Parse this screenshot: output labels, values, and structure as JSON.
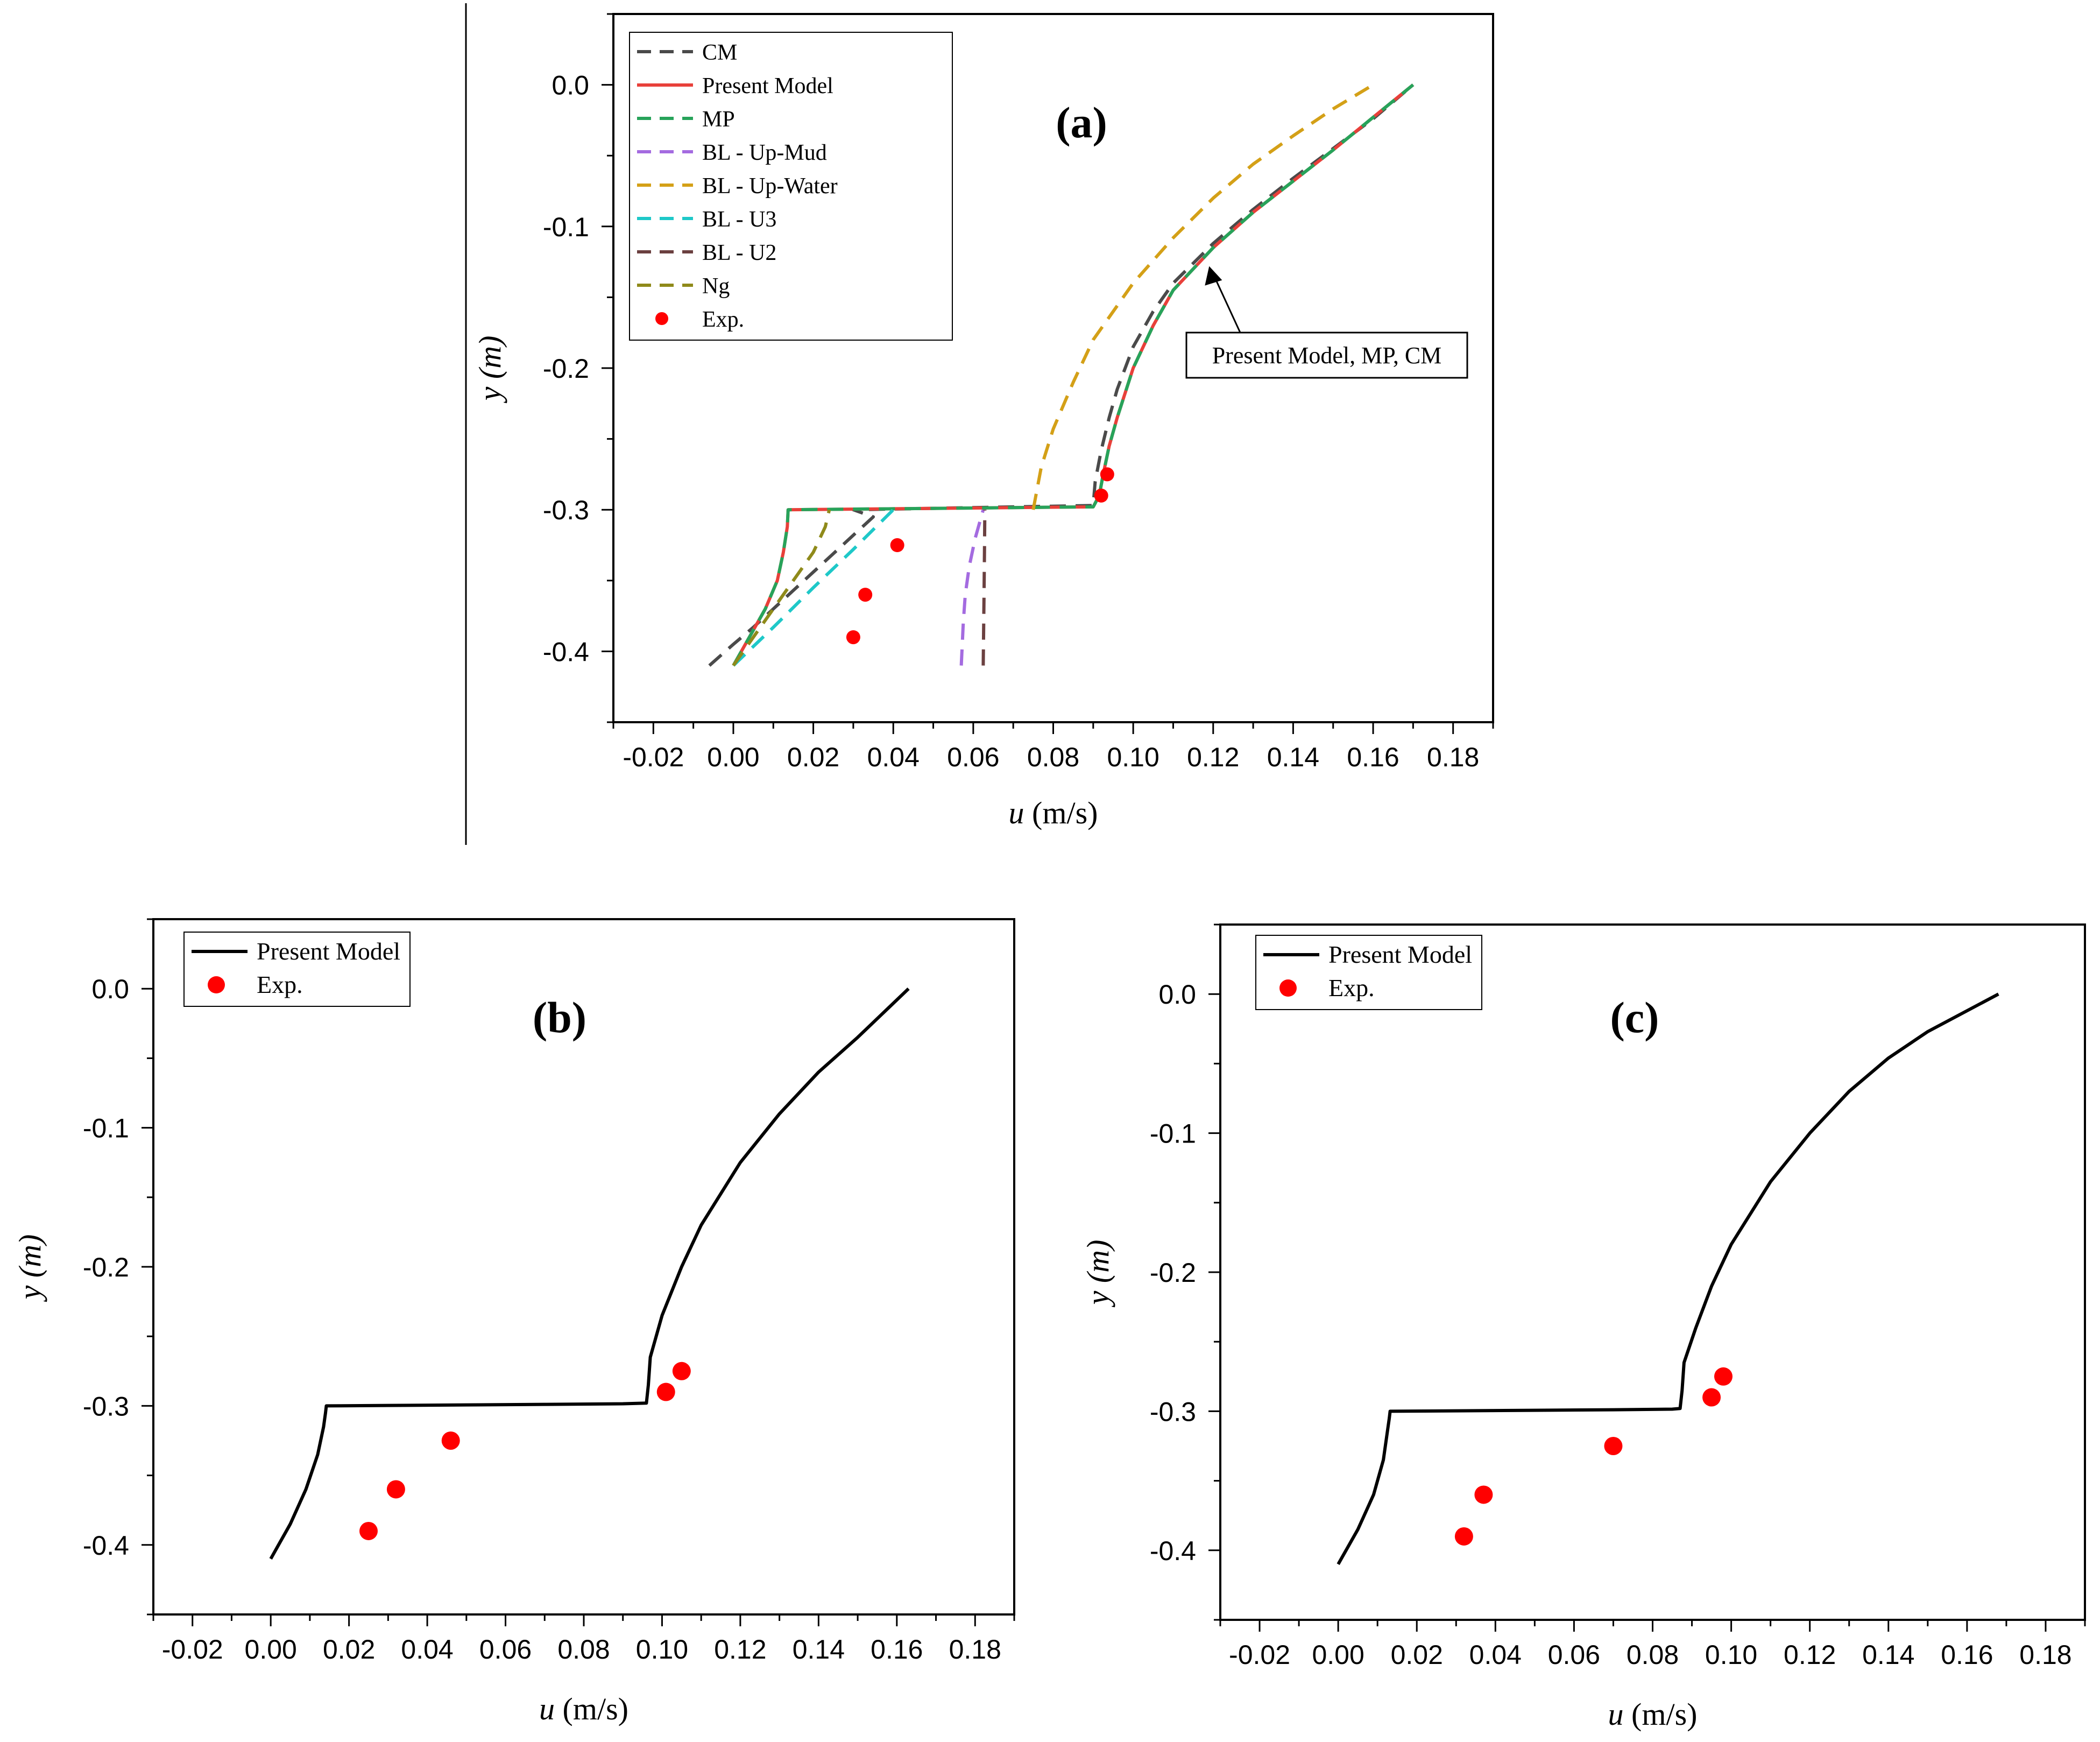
{
  "chart_data": [
    {
      "type": "line",
      "panel": "(a)",
      "title": "(a)",
      "xlabel_var": "u",
      "xlabel_unit": " (m/s)",
      "ylabel_var": "y",
      "ylabel_unit": " (m)",
      "xlim": [
        -0.03,
        0.19
      ],
      "ylim": [
        -0.45,
        0.05
      ],
      "xticks": [
        -0.02,
        0.0,
        0.02,
        0.04,
        0.06,
        0.08,
        0.1,
        0.12,
        0.14,
        0.16,
        0.18
      ],
      "xtick_labels": [
        "-0.02",
        "0.00",
        "0.02",
        "0.04",
        "0.06",
        "0.08",
        "0.10",
        "0.12",
        "0.14",
        "0.16",
        "0.18"
      ],
      "yticks": [
        0.0,
        -0.1,
        -0.2,
        -0.3,
        -0.4
      ],
      "ytick_labels": [
        "0.0",
        "-0.1",
        "-0.2",
        "-0.3",
        "-0.4"
      ],
      "legend_position": "top-left",
      "annotation": {
        "text": "Present Model, MP, CM",
        "points_to": [
          0.119,
          -0.125
        ],
        "box_at": [
          0.155,
          -0.19
        ]
      },
      "series": [
        {
          "name": "CM",
          "color": "#4a4a4a",
          "dash": "dashed",
          "x": [
            -0.006,
            0.0,
            0.005,
            0.01,
            0.015,
            0.02,
            0.025,
            0.03,
            0.035,
            0.03,
            0.05,
            0.07,
            0.09,
            0.0905,
            0.092,
            0.094,
            0.096,
            0.1,
            0.105,
            0.11,
            0.12,
            0.13,
            0.14,
            0.15,
            0.16,
            0.17
          ],
          "y": [
            -0.41,
            -0.395,
            -0.383,
            -0.37,
            -0.357,
            -0.344,
            -0.331,
            -0.318,
            -0.305,
            -0.3,
            -0.299,
            -0.298,
            -0.297,
            -0.28,
            -0.258,
            -0.235,
            -0.215,
            -0.185,
            -0.16,
            -0.14,
            -0.112,
            -0.088,
            -0.066,
            -0.045,
            -0.024,
            0.0
          ]
        },
        {
          "name": "Present Model",
          "color": "#e8403a",
          "dash": "solid",
          "x": [
            0.0,
            0.004,
            0.008,
            0.011,
            0.0125,
            0.0135,
            0.0137,
            0.02,
            0.04,
            0.06,
            0.08,
            0.09,
            0.0915,
            0.0925,
            0.094,
            0.096,
            0.1,
            0.105,
            0.11,
            0.12,
            0.13,
            0.14,
            0.15,
            0.16,
            0.17
          ],
          "y": [
            -0.41,
            -0.39,
            -0.37,
            -0.35,
            -0.33,
            -0.312,
            -0.3,
            -0.2998,
            -0.2993,
            -0.2988,
            -0.2982,
            -0.298,
            -0.29,
            -0.275,
            -0.255,
            -0.235,
            -0.2,
            -0.17,
            -0.145,
            -0.115,
            -0.09,
            -0.068,
            -0.046,
            -0.023,
            0.0
          ]
        },
        {
          "name": "MP",
          "color": "#27a35a",
          "dash": "dashed",
          "x": [
            0.0,
            0.004,
            0.008,
            0.011,
            0.0125,
            0.0135,
            0.0137,
            0.02,
            0.04,
            0.06,
            0.08,
            0.09,
            0.0915,
            0.0925,
            0.094,
            0.096,
            0.1,
            0.105,
            0.11,
            0.12,
            0.13,
            0.14,
            0.15,
            0.16,
            0.17
          ],
          "y": [
            -0.41,
            -0.39,
            -0.37,
            -0.35,
            -0.33,
            -0.312,
            -0.3,
            -0.2998,
            -0.2993,
            -0.2988,
            -0.2982,
            -0.298,
            -0.29,
            -0.275,
            -0.255,
            -0.235,
            -0.2,
            -0.17,
            -0.145,
            -0.115,
            -0.09,
            -0.068,
            -0.046,
            -0.023,
            0.0
          ]
        },
        {
          "name": "BL - Up-Mud",
          "color": "#a46be0",
          "dash": "dashed",
          "x": [
            0.057,
            0.0575,
            0.058,
            0.059,
            0.0605,
            0.0625
          ],
          "y": [
            -0.41,
            -0.38,
            -0.36,
            -0.34,
            -0.32,
            -0.3
          ]
        },
        {
          "name": "BL - Up-Water",
          "color": "#d4a017",
          "dash": "dashed",
          "x": [
            0.075,
            0.077,
            0.08,
            0.085,
            0.09,
            0.1,
            0.11,
            0.12,
            0.13,
            0.14,
            0.15,
            0.16
          ],
          "y": [
            -0.3,
            -0.27,
            -0.243,
            -0.21,
            -0.18,
            -0.14,
            -0.108,
            -0.08,
            -0.056,
            -0.036,
            -0.017,
            0.0
          ]
        },
        {
          "name": "BL - U3",
          "color": "#1ec8c8",
          "dash": "dashed",
          "x": [
            0.0,
            0.01,
            0.02,
            0.03,
            0.04
          ],
          "y": [
            -0.41,
            -0.383,
            -0.355,
            -0.328,
            -0.3
          ]
        },
        {
          "name": "BL - U2",
          "color": "#6b4040",
          "dash": "dashed",
          "x": [
            0.0625,
            0.0627,
            0.0628,
            0.0629
          ],
          "y": [
            -0.41,
            -0.36,
            -0.33,
            -0.3
          ]
        },
        {
          "name": "Ng",
          "color": "#8f8a1a",
          "dash": "dashed",
          "x": [
            0.0,
            0.005,
            0.01,
            0.015,
            0.02,
            0.023,
            0.024
          ],
          "y": [
            -0.41,
            -0.39,
            -0.37,
            -0.35,
            -0.33,
            -0.312,
            -0.3
          ]
        },
        {
          "name": "Exp.",
          "type": "scatter",
          "color": "#ff0000",
          "x": [
            0.0935,
            0.092,
            0.041,
            0.033,
            0.03
          ],
          "y": [
            -0.275,
            -0.29,
            -0.325,
            -0.36,
            -0.39
          ]
        }
      ]
    },
    {
      "type": "line",
      "panel": "(b)",
      "title": "(b)",
      "xlabel_var": "u",
      "xlabel_unit": " (m/s)",
      "ylabel_var": "y",
      "ylabel_unit": " (m)",
      "xlim": [
        -0.03,
        0.19
      ],
      "ylim": [
        -0.45,
        0.05
      ],
      "xticks": [
        -0.02,
        0.0,
        0.02,
        0.04,
        0.06,
        0.08,
        0.1,
        0.12,
        0.14,
        0.16,
        0.18
      ],
      "xtick_labels": [
        "-0.02",
        "0.00",
        "0.02",
        "0.04",
        "0.06",
        "0.08",
        "0.10",
        "0.12",
        "0.14",
        "0.16",
        "0.18"
      ],
      "yticks": [
        0.0,
        -0.1,
        -0.2,
        -0.3,
        -0.4
      ],
      "ytick_labels": [
        "0.0",
        "-0.1",
        "-0.2",
        "-0.3",
        "-0.4"
      ],
      "legend_position": "top-left",
      "series": [
        {
          "name": "Present Model",
          "color": "#000000",
          "dash": "solid",
          "x": [
            0.0,
            0.005,
            0.009,
            0.012,
            0.0135,
            0.014,
            0.0142,
            0.03,
            0.05,
            0.07,
            0.09,
            0.096,
            0.0965,
            0.097,
            0.1,
            0.105,
            0.11,
            0.12,
            0.13,
            0.14,
            0.15,
            0.163
          ],
          "y": [
            -0.41,
            -0.385,
            -0.36,
            -0.335,
            -0.315,
            -0.305,
            -0.3,
            -0.2997,
            -0.2993,
            -0.2989,
            -0.2985,
            -0.298,
            -0.285,
            -0.265,
            -0.235,
            -0.2,
            -0.17,
            -0.125,
            -0.09,
            -0.06,
            -0.035,
            0.0
          ]
        },
        {
          "name": "Exp.",
          "type": "scatter",
          "color": "#ff0000",
          "x": [
            0.105,
            0.101,
            0.046,
            0.032,
            0.025
          ],
          "y": [
            -0.275,
            -0.29,
            -0.325,
            -0.36,
            -0.39
          ]
        }
      ]
    },
    {
      "type": "line",
      "panel": "(c)",
      "title": "(c)",
      "xlabel_var": "u",
      "xlabel_unit": " (m/s)",
      "ylabel_var": "y",
      "ylabel_unit": " (m)",
      "xlim": [
        -0.03,
        0.19
      ],
      "ylim": [
        -0.45,
        0.05
      ],
      "xticks": [
        -0.02,
        0.0,
        0.02,
        0.04,
        0.06,
        0.08,
        0.1,
        0.12,
        0.14,
        0.16,
        0.18
      ],
      "xtick_labels": [
        "-0.02",
        "0.00",
        "0.02",
        "0.04",
        "0.06",
        "0.08",
        "0.10",
        "0.12",
        "0.14",
        "0.16",
        "0.18"
      ],
      "yticks": [
        0.0,
        -0.1,
        -0.2,
        -0.3,
        -0.4
      ],
      "ytick_labels": [
        "0.0",
        "-0.1",
        "-0.2",
        "-0.3",
        "-0.4"
      ],
      "legend_position": "top-left",
      "series": [
        {
          "name": "Present Model",
          "color": "#000000",
          "dash": "solid",
          "x": [
            0.0,
            0.005,
            0.009,
            0.0115,
            0.0125,
            0.013,
            0.0132,
            0.03,
            0.05,
            0.07,
            0.085,
            0.087,
            0.0875,
            0.088,
            0.091,
            0.095,
            0.1,
            0.11,
            0.12,
            0.13,
            0.14,
            0.15,
            0.168
          ],
          "y": [
            -0.41,
            -0.385,
            -0.36,
            -0.335,
            -0.315,
            -0.305,
            -0.3,
            -0.2997,
            -0.2993,
            -0.2989,
            -0.2985,
            -0.298,
            -0.285,
            -0.265,
            -0.24,
            -0.21,
            -0.18,
            -0.135,
            -0.1,
            -0.07,
            -0.046,
            -0.027,
            0.0
          ]
        },
        {
          "name": "Exp.",
          "type": "scatter",
          "color": "#ff0000",
          "x": [
            0.098,
            0.095,
            0.07,
            0.037,
            0.032
          ],
          "y": [
            -0.275,
            -0.29,
            -0.325,
            -0.36,
            -0.39
          ]
        }
      ]
    }
  ]
}
